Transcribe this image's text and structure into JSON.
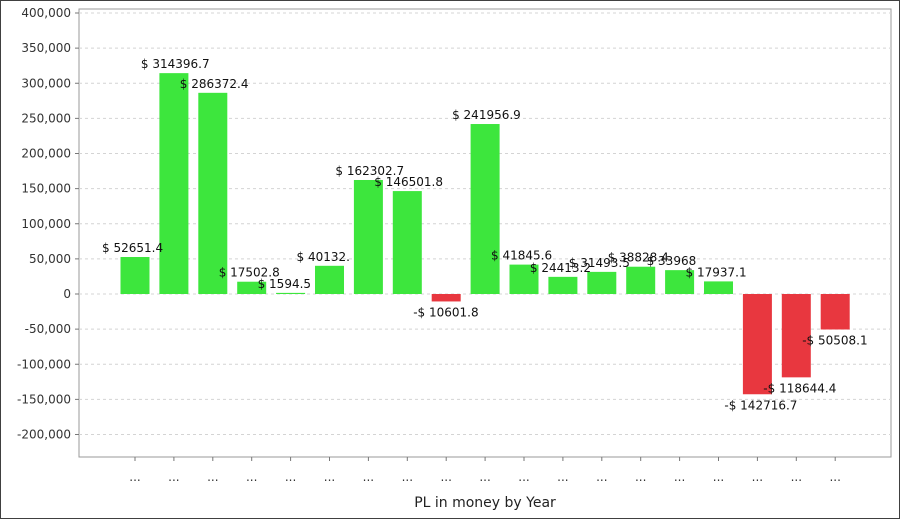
{
  "chart_data": {
    "type": "bar",
    "title": "",
    "xlabel": "PL in money by Year",
    "ylabel": "",
    "ylim": [
      -230000,
      400000
    ],
    "yticks": [
      400000,
      350000,
      300000,
      250000,
      200000,
      150000,
      100000,
      50000,
      0,
      -50000,
      -100000,
      -150000,
      -200000
    ],
    "ytick_labels": [
      "400,000",
      "350,000",
      "300,000",
      "250,000",
      "200,000",
      "150,000",
      "100,000",
      "50,000",
      "0",
      "-50,000",
      "-100,000",
      "-150,000",
      "-200,000"
    ],
    "grid": true,
    "categories": [
      "...",
      "...",
      "...",
      "...",
      "...",
      "...",
      "...",
      "...",
      "...",
      "...",
      "...",
      "...",
      "...",
      "...",
      "...",
      "...",
      "...",
      "...",
      "..."
    ],
    "values": [
      52651.4,
      314396.7,
      286372.4,
      17502.8,
      1594.5,
      40132,
      162302.7,
      146501.8,
      -10601.8,
      241956.9,
      41845.6,
      24413.2,
      31493.5,
      38828.4,
      33968,
      17937.1,
      -142716.7,
      -118644.4,
      -50508.1
    ],
    "data_labels": [
      "$ 52651.4",
      "$ 314396.7",
      "$ 286372.4",
      "$ 17502.8",
      "$ 1594.5",
      "$ 40132.",
      "$ 162302.7",
      "$ 146501.8",
      "-$ 10601.8",
      "$ 241956.9",
      "$ 41845.6",
      "$ 24413.2",
      "$ 31493.5",
      "$ 38828.4",
      "$ 33968",
      "$ 17937.1",
      "-$ 142716.7",
      "-$ 118644.4",
      "-$ 50508.1"
    ],
    "colors": {
      "positive": "#3de63d",
      "negative": "#e8373f"
    }
  }
}
